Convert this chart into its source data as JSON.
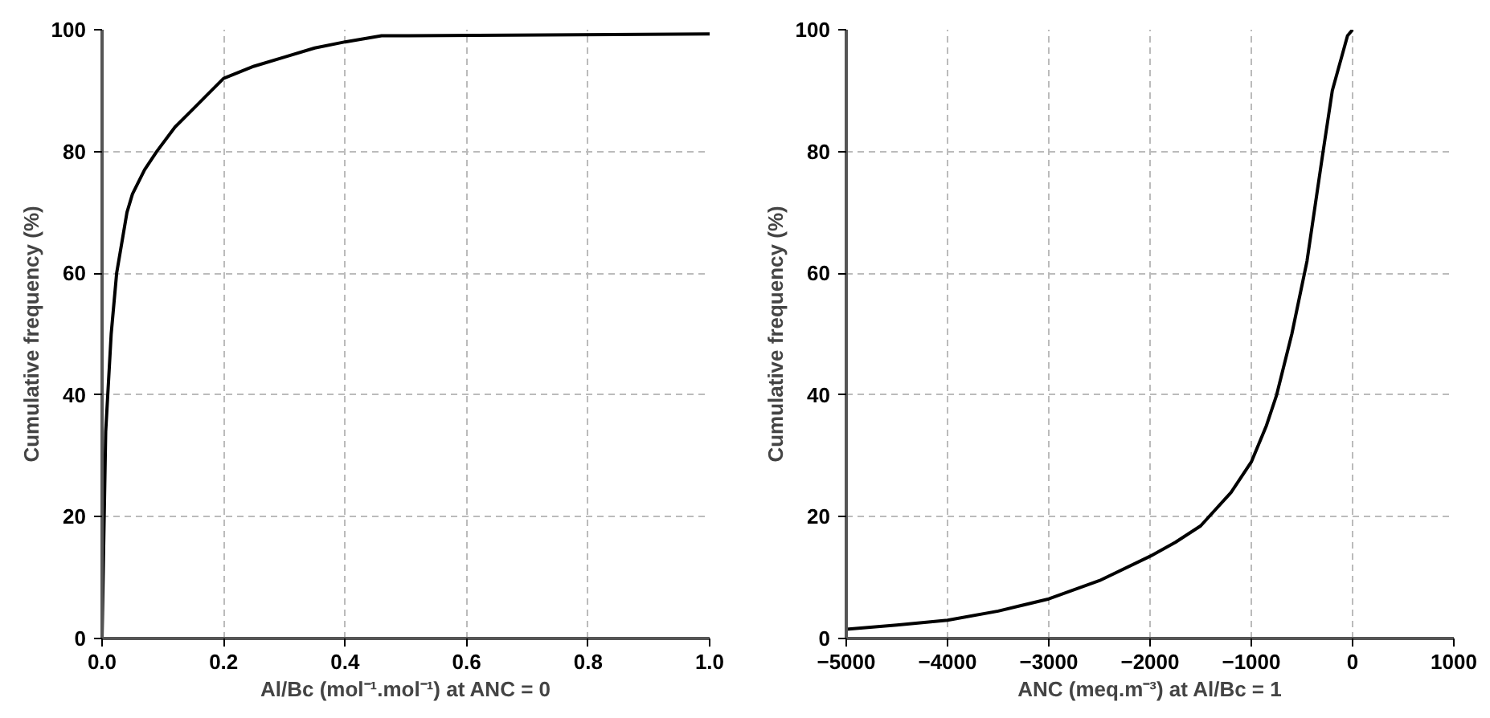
{
  "chart_data": [
    {
      "type": "line",
      "xlabel": "Al/Bc (mol⁻¹.mol⁻¹) at ANC = 0",
      "ylabel": "Cumulative frequency (%)",
      "x": [
        0,
        0.0035,
        0.006,
        0.015,
        0.024,
        0.041,
        0.05,
        0.07,
        0.09,
        0.12,
        0.15,
        0.17,
        0.2,
        0.25,
        0.3,
        0.35,
        0.4,
        0.46,
        1.0
      ],
      "series": [
        {
          "color": "#000000",
          "values": [
            0,
            20,
            34,
            50,
            60,
            70,
            73,
            77,
            80,
            84,
            87,
            89,
            92,
            94,
            95.5,
            97,
            98,
            99,
            99.3
          ]
        }
      ],
      "xlim": [
        0,
        1.0
      ],
      "ylim": [
        0,
        100
      ],
      "xticks": [
        {
          "value": 0,
          "label": "0.0"
        },
        0.2,
        0.4,
        0.6,
        0.8,
        {
          "value": 1,
          "label": "1.0"
        }
      ],
      "yticks": [
        0,
        20,
        40,
        60,
        80,
        100
      ],
      "grid": true,
      "marker": "none",
      "line_style": "solid"
    },
    {
      "type": "line",
      "xlabel": "ANC (meq.m⁻³) at Al/Bc = 1",
      "ylabel": "Cumulative frequency (%)",
      "x": [
        -5000,
        -4500,
        -4000,
        -3500,
        -3000,
        -2500,
        -2000,
        -1750,
        -1500,
        -1200,
        -1000,
        -850,
        -750,
        -600,
        -450,
        -300,
        -200,
        -50,
        0
      ],
      "series": [
        {
          "color": "#000000",
          "values": [
            1.5,
            2.2,
            3,
            4.5,
            6.5,
            9.5,
            13.5,
            15.8,
            18.5,
            24,
            29,
            35,
            40,
            50,
            62,
            79,
            90,
            99,
            100
          ]
        }
      ],
      "xlim": [
        -5000,
        1000
      ],
      "ylim": [
        0,
        100
      ],
      "xticks": [
        -5000,
        -4000,
        -3000,
        -2000,
        -1000,
        0,
        1000
      ],
      "yticks": [
        0,
        20,
        40,
        60,
        80,
        100
      ],
      "grid": true,
      "marker": "none",
      "line_style": "solid"
    }
  ]
}
